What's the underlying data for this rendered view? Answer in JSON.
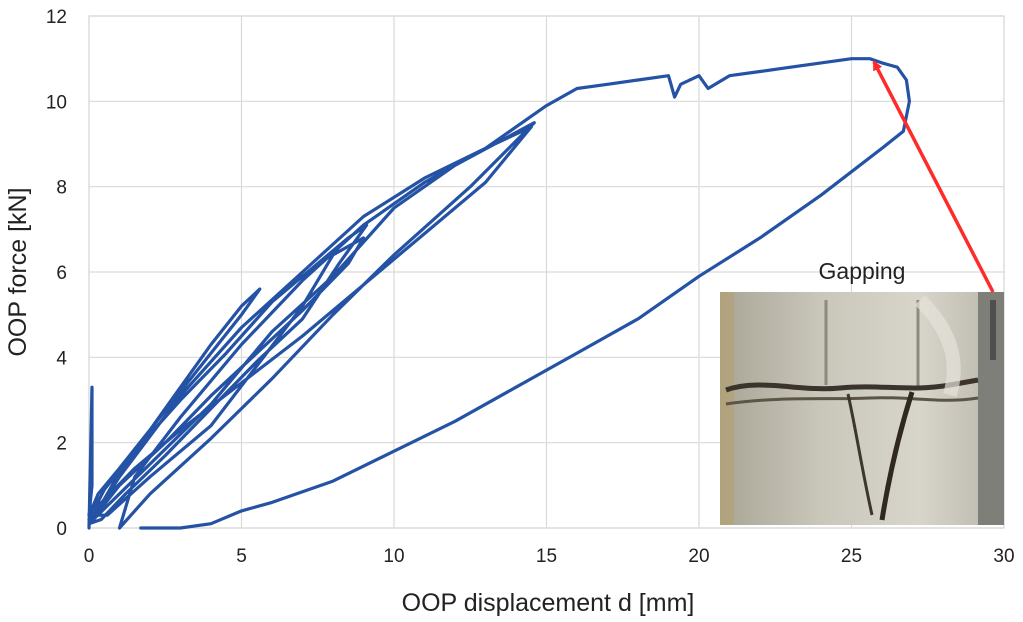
{
  "chart_data": {
    "type": "line",
    "xlabel": "OOP displacement d [mm]",
    "ylabel": "OOP force [kN]",
    "xlim": [
      0,
      30
    ],
    "ylim": [
      0,
      12
    ],
    "xticks": [
      "0",
      "5",
      "10",
      "15",
      "20",
      "25",
      "30"
    ],
    "yticks": [
      "0",
      "2",
      "4",
      "6",
      "8",
      "10",
      "12"
    ],
    "grid": true,
    "legend": "none",
    "series": [
      {
        "color": "#2452a4",
        "x": [
          0.0,
          0.1,
          0.1,
          0.0,
          0.3,
          1.0,
          2.0,
          3.0,
          4.0,
          5.0,
          5.6,
          5.0,
          4.0,
          3.0,
          2.0,
          1.0,
          0.2,
          0.0,
          0.5,
          1.5,
          3.0,
          4.5,
          6.0,
          7.5,
          8.5,
          9.1,
          8.2,
          7.0,
          5.5,
          4.0,
          2.5,
          1.2,
          0.4,
          0.0,
          1.0,
          2.5,
          4.0,
          5.5,
          7.0,
          8.5,
          9.0,
          8.0,
          7.0,
          5.5,
          4.0,
          2.0,
          0.6,
          0.0,
          1.5,
          3.0,
          5.0,
          7.0,
          9.0,
          11.0,
          13.0,
          14.5,
          13.0,
          11.0,
          9.0,
          7.0,
          5.0,
          3.0,
          1.0,
          0.0,
          2.0,
          4.0,
          6.0,
          8.0,
          10.0,
          12.0,
          14.6,
          12.5,
          10.0,
          8.0,
          6.0,
          4.0,
          2.0,
          1.0,
          1.5,
          3.0,
          5.0,
          7.0,
          9.0,
          11.0,
          13.0,
          15.0,
          16.0,
          17.0,
          18.0,
          19.0,
          19.2,
          19.4,
          20.0,
          20.3,
          21.0,
          22.0,
          23.0,
          24.0,
          25.0,
          25.6,
          26.0,
          26.5,
          26.8,
          26.9,
          26.7,
          26.0,
          24.0,
          22.0,
          20.0,
          18.0,
          16.0,
          14.0,
          12.0,
          10.0,
          8.0,
          6.0,
          5.0,
          4.0,
          3.0,
          2.0,
          1.7
        ],
        "y": [
          0.0,
          3.3,
          1.0,
          0.3,
          0.8,
          1.4,
          2.3,
          3.3,
          4.3,
          5.2,
          5.6,
          5.0,
          4.1,
          3.2,
          2.3,
          1.3,
          0.3,
          0.2,
          0.9,
          1.8,
          3.0,
          4.1,
          5.3,
          6.2,
          6.8,
          7.1,
          6.2,
          4.9,
          3.9,
          2.8,
          1.7,
          0.8,
          0.2,
          0.1,
          1.0,
          2.0,
          3.1,
          4.1,
          5.1,
          6.2,
          6.8,
          6.4,
          5.2,
          3.8,
          2.4,
          1.2,
          0.3,
          0.3,
          1.4,
          2.3,
          3.4,
          4.5,
          5.7,
          6.9,
          8.1,
          9.4,
          8.9,
          8.2,
          7.3,
          6.0,
          4.7,
          3.1,
          1.2,
          0.1,
          1.5,
          2.9,
          4.6,
          5.9,
          7.5,
          8.5,
          9.5,
          8.0,
          6.4,
          5.0,
          3.5,
          2.1,
          0.8,
          0.0,
          1.2,
          2.6,
          4.3,
          5.8,
          7.1,
          8.1,
          8.9,
          9.9,
          10.3,
          10.4,
          10.5,
          10.6,
          10.1,
          10.4,
          10.6,
          10.3,
          10.6,
          10.7,
          10.8,
          10.9,
          11.0,
          11.0,
          10.9,
          10.8,
          10.5,
          10.0,
          9.3,
          8.9,
          7.8,
          6.8,
          5.9,
          4.9,
          4.1,
          3.3,
          2.5,
          1.8,
          1.1,
          0.6,
          0.4,
          0.1,
          0.0,
          0.0,
          0.0
        ]
      }
    ],
    "annotations": [
      {
        "text": "Gapping",
        "arrow_color": "#ff2a2a",
        "arrow_to": [
          25.6,
          11.0
        ]
      }
    ]
  }
}
